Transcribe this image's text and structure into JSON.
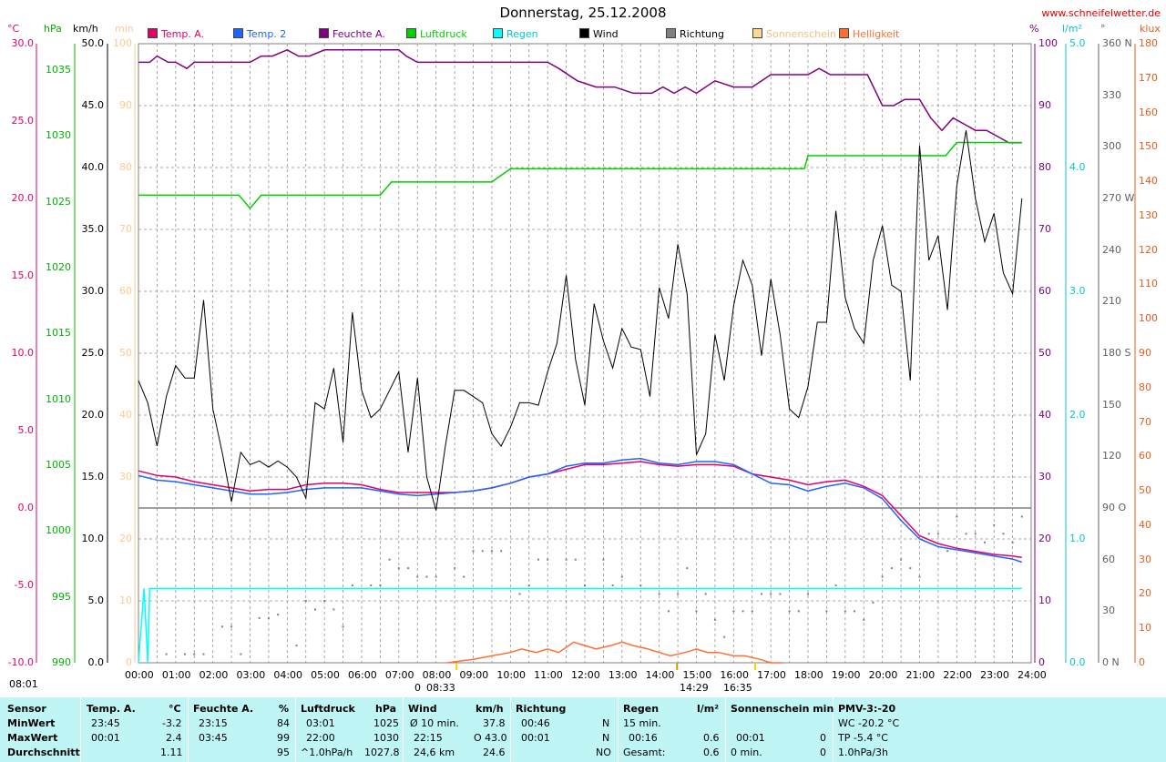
{
  "title": "Donnerstag, 25.12.2008",
  "site_url": "www.schneifelwetter.de",
  "legend": [
    {
      "label": "Temp. A.",
      "color": "#e0006a"
    },
    {
      "label": "Temp. 2",
      "color": "#1e64ff"
    },
    {
      "label": "Feuchte A.",
      "color": "#800080"
    },
    {
      "label": "Luftdruck",
      "color": "#00d000"
    },
    {
      "label": "Regen",
      "color": "#00ffff"
    },
    {
      "label": "Wind",
      "color": "#000000"
    },
    {
      "label": "Richtung",
      "color": "#808080"
    },
    {
      "label": "Sonnenschein",
      "color": "#ffd890"
    },
    {
      "label": "Helligkeit",
      "color": "#ff7030"
    }
  ],
  "units": {
    "temp": "°C",
    "pressure": "hPa",
    "wind": "km/h",
    "sun": "min",
    "humidity": "%",
    "rain": "l/m²",
    "direction": "°",
    "light": "klux"
  },
  "axis_colors": {
    "temp": "#e0006a",
    "pressure": "#00b000",
    "wind": "#000000",
    "sun": "#ffc890",
    "humidity": "#800080",
    "rain": "#00c8c8",
    "direction": "#606060",
    "light": "#e06020"
  },
  "chart_data": {
    "type": "line",
    "title": "Donnerstag, 25.12.2008",
    "x_ticks": [
      "00:00",
      "01:00",
      "02:00",
      "03:00",
      "04:00",
      "05:00",
      "06:00",
      "07:00",
      "08:00",
      "09:00",
      "10:00",
      "11:00",
      "12:00",
      "13:00",
      "14:00",
      "15:00",
      "16:00",
      "17:00",
      "18:00",
      "19:00",
      "20:00",
      "21:00",
      "22:00",
      "23:00",
      "24:00"
    ],
    "xlim": [
      0,
      24
    ],
    "axes": {
      "temp": {
        "unit": "°C",
        "range": [
          -10,
          30
        ],
        "ticks": [
          "30.0",
          "25.0",
          "20.0",
          "15.0",
          "10.0",
          "5.0",
          "0.0",
          "-5.0",
          "-10.0"
        ]
      },
      "pressure": {
        "unit": "hPa",
        "range": [
          990,
          1037
        ],
        "ticks": [
          "1035",
          "1030",
          "1025",
          "1020",
          "1015",
          "1010",
          "1005",
          "1000",
          "995",
          "990"
        ]
      },
      "wind": {
        "unit": "km/h",
        "range": [
          0,
          50
        ],
        "ticks": [
          "50.0",
          "45.0",
          "40.0",
          "35.0",
          "30.0",
          "25.0",
          "20.0",
          "15.0",
          "10.0",
          "5.0",
          "0.0"
        ]
      },
      "sun": {
        "unit": "min",
        "range": [
          0,
          100
        ],
        "ticks": [
          "100",
          "90",
          "80",
          "70",
          "60",
          "50",
          "40",
          "30",
          "20",
          "10",
          "0"
        ]
      },
      "humidity": {
        "unit": "%",
        "range": [
          0,
          100
        ],
        "ticks": [
          "100",
          "90",
          "80",
          "70",
          "60",
          "50",
          "40",
          "30",
          "20",
          "10",
          "0"
        ]
      },
      "rain": {
        "unit": "l/m²",
        "range": [
          0,
          5
        ],
        "ticks": [
          "5.0",
          "4.0",
          "3.0",
          "2.0",
          "1.0",
          "0.0"
        ]
      },
      "direction": {
        "unit": "°",
        "range": [
          0,
          360
        ],
        "ticks": [
          "360 N",
          "330",
          "300",
          "270 W",
          "240",
          "210",
          "180 S",
          "150",
          "120",
          "90 O",
          "60",
          "30",
          "0 N"
        ]
      },
      "light": {
        "unit": "klux",
        "range": [
          0,
          180
        ],
        "ticks": [
          "180",
          "170",
          "160",
          "150",
          "140",
          "130",
          "120",
          "110",
          "100",
          "90",
          "80",
          "70",
          "60",
          "50",
          "40",
          "30",
          "20",
          "10",
          "0"
        ]
      }
    },
    "series": [
      {
        "name": "Temp. A.",
        "axis": "temp",
        "color": "#e0006a",
        "x": [
          0,
          0.5,
          1,
          1.5,
          2,
          2.5,
          3,
          3.5,
          4,
          4.5,
          5,
          5.5,
          6,
          6.5,
          7,
          7.5,
          8,
          8.5,
          9,
          9.5,
          10,
          10.5,
          11,
          11.5,
          12,
          12.5,
          13,
          13.5,
          14,
          14.5,
          15,
          15.5,
          16,
          16.5,
          17,
          17.5,
          18,
          18.5,
          19,
          19.5,
          20,
          20.5,
          21,
          21.5,
          22,
          22.5,
          23,
          23.5,
          23.75
        ],
        "y": [
          2.4,
          2.1,
          2.0,
          1.7,
          1.5,
          1.3,
          1.1,
          1.2,
          1.2,
          1.5,
          1.6,
          1.6,
          1.5,
          1.2,
          1.0,
          1.0,
          1.0,
          1.0,
          1.1,
          1.3,
          1.6,
          2.0,
          2.2,
          2.5,
          2.8,
          2.8,
          2.9,
          3.0,
          2.8,
          2.7,
          2.8,
          2.8,
          2.7,
          2.2,
          2.0,
          1.8,
          1.5,
          1.7,
          1.8,
          1.4,
          0.8,
          -0.5,
          -1.8,
          -2.3,
          -2.6,
          -2.8,
          -3.0,
          -3.1,
          -3.2
        ]
      },
      {
        "name": "Temp. 2",
        "axis": "temp",
        "color": "#1e64ff",
        "x": [
          0,
          0.5,
          1,
          1.5,
          2,
          2.5,
          3,
          3.5,
          4,
          4.5,
          5,
          5.5,
          6,
          6.5,
          7,
          7.5,
          8,
          8.5,
          9,
          9.5,
          10,
          10.5,
          11,
          11.5,
          12,
          12.5,
          13,
          13.5,
          14,
          14.5,
          15,
          15.5,
          16,
          16.5,
          17,
          17.5,
          18,
          18.5,
          19,
          19.5,
          20,
          20.5,
          21,
          21.5,
          22,
          22.5,
          23,
          23.5,
          23.75
        ],
        "y": [
          2.1,
          1.8,
          1.7,
          1.5,
          1.3,
          1.1,
          0.9,
          0.9,
          1.0,
          1.2,
          1.3,
          1.3,
          1.3,
          1.1,
          0.9,
          0.8,
          0.9,
          1.0,
          1.1,
          1.3,
          1.6,
          2.0,
          2.2,
          2.7,
          2.9,
          2.9,
          3.1,
          3.2,
          2.9,
          2.8,
          3.0,
          3.0,
          2.8,
          2.2,
          1.6,
          1.5,
          1.1,
          1.4,
          1.6,
          1.3,
          0.6,
          -0.8,
          -2.0,
          -2.5,
          -2.7,
          -2.9,
          -3.1,
          -3.3,
          -3.5
        ]
      },
      {
        "name": "Feuchte A.",
        "axis": "humidity",
        "color": "#800080",
        "x": [
          0,
          0.3,
          0.5,
          0.8,
          1,
          1.3,
          1.5,
          2,
          2.5,
          3,
          3.3,
          3.6,
          4,
          4.3,
          4.6,
          5,
          5.5,
          6,
          6.5,
          7,
          7.2,
          7.5,
          8,
          8.5,
          9,
          9.5,
          10,
          10.5,
          11,
          11.3,
          11.8,
          12.3,
          12.8,
          13.3,
          13.8,
          14.1,
          14.4,
          14.7,
          15,
          15.5,
          16,
          16.5,
          17,
          17.5,
          18,
          18.3,
          18.6,
          19,
          19.3,
          19.6,
          20,
          20.3,
          20.6,
          21,
          21.3,
          21.6,
          21.9,
          22.2,
          22.5,
          22.8,
          23.1,
          23.4,
          23.75
        ],
        "y": [
          97,
          97,
          98,
          97,
          97,
          96,
          97,
          97,
          97,
          97,
          98,
          98,
          99,
          98,
          98,
          99,
          99,
          99,
          99,
          99,
          98,
          97,
          97,
          97,
          97,
          97,
          97,
          97,
          97,
          96,
          94,
          93,
          93,
          92,
          92,
          93,
          92,
          93,
          92,
          94,
          93,
          93,
          95,
          95,
          95,
          96,
          95,
          95,
          95,
          95,
          90,
          90,
          91,
          91,
          88,
          86,
          88,
          87,
          86,
          86,
          85,
          84,
          84
        ]
      },
      {
        "name": "Luftdruck",
        "axis": "pressure",
        "color": "#00d000",
        "x": [
          0,
          1,
          2,
          2.7,
          3,
          3.3,
          4,
          5,
          6,
          6.5,
          6.8,
          7,
          8,
          9,
          9.5,
          10,
          11,
          12,
          13,
          14,
          15,
          16,
          17,
          17.5,
          17.9,
          18,
          19,
          20,
          21,
          21.7,
          22,
          23,
          23.75
        ],
        "y": [
          1025.5,
          1025.5,
          1025.5,
          1025.5,
          1024.5,
          1025.5,
          1025.5,
          1025.5,
          1025.5,
          1025.5,
          1026.5,
          1026.5,
          1026.5,
          1026.5,
          1026.5,
          1027.5,
          1027.5,
          1027.5,
          1027.5,
          1027.5,
          1027.5,
          1027.5,
          1027.5,
          1027.5,
          1027.5,
          1028.5,
          1028.5,
          1028.5,
          1028.5,
          1028.5,
          1029.5,
          1029.5,
          1029.5
        ]
      },
      {
        "name": "Wind",
        "axis": "wind",
        "color": "#000000",
        "x": [
          0,
          0.25,
          0.5,
          0.75,
          1,
          1.25,
          1.5,
          1.75,
          2,
          2.25,
          2.5,
          2.75,
          3,
          3.25,
          3.5,
          3.75,
          4,
          4.25,
          4.5,
          4.75,
          5,
          5.25,
          5.5,
          5.75,
          6,
          6.25,
          6.5,
          6.75,
          7,
          7.25,
          7.5,
          7.75,
          8,
          8.25,
          8.5,
          8.75,
          9,
          9.25,
          9.5,
          9.75,
          10,
          10.25,
          10.5,
          10.75,
          11,
          11.25,
          11.5,
          11.75,
          12,
          12.25,
          12.5,
          12.75,
          13,
          13.25,
          13.5,
          13.75,
          14,
          14.25,
          14.5,
          14.75,
          15,
          15.25,
          15.5,
          15.75,
          16,
          16.25,
          16.5,
          16.75,
          17,
          17.25,
          17.5,
          17.75,
          18,
          18.25,
          18.5,
          18.75,
          19,
          19.25,
          19.5,
          19.75,
          20,
          20.25,
          20.5,
          20.75,
          21,
          21.25,
          21.5,
          21.75,
          22,
          22.25,
          22.5,
          22.75,
          23,
          23.25,
          23.5,
          23.75
        ],
        "y": [
          22.8,
          21.0,
          17.5,
          21.5,
          24.0,
          23.0,
          23.0,
          29.3,
          20.5,
          17.0,
          13.0,
          17.0,
          16.0,
          16.3,
          15.8,
          16.3,
          15.8,
          15.0,
          13.3,
          21.0,
          20.5,
          23.8,
          17.8,
          28.3,
          22.0,
          19.8,
          20.5,
          22.0,
          23.5,
          17.0,
          23.0,
          15.0,
          12.3,
          17.5,
          22.0,
          22.0,
          21.5,
          21.0,
          18.5,
          17.5,
          19.0,
          21.0,
          21.0,
          20.8,
          23.5,
          25.8,
          31.3,
          24.5,
          20.8,
          29.0,
          26.0,
          23.8,
          27.0,
          25.5,
          25.3,
          21.5,
          30.3,
          27.8,
          33.8,
          29.8,
          16.8,
          18.5,
          26.5,
          22.8,
          28.8,
          32.5,
          30.5,
          24.8,
          31.0,
          26.5,
          20.5,
          19.8,
          22.3,
          27.5,
          27.5,
          36.5,
          29.5,
          27.0,
          25.8,
          32.5,
          35.3,
          30.5,
          30.0,
          22.8,
          41.8,
          32.5,
          34.5,
          28.5,
          38.5,
          43.0,
          37.5,
          34.0,
          36.3,
          31.5,
          29.8,
          37.5
        ]
      },
      {
        "name": "Regen",
        "axis": "rain",
        "color": "#00ffff",
        "x": [
          0,
          0.15,
          0.25,
          0.3,
          1,
          6,
          12,
          18,
          23.75
        ],
        "y": [
          0,
          0.6,
          0,
          0.6,
          0.6,
          0.6,
          0.6,
          0.6,
          0.6
        ]
      },
      {
        "name": "Helligkeit",
        "axis": "light",
        "color": "#ff7030",
        "x": [
          8.3,
          9,
          9.5,
          10,
          10.3,
          10.7,
          11,
          11.3,
          11.7,
          12,
          12.3,
          12.7,
          13,
          13.3,
          13.7,
          14,
          14.3,
          14.7,
          15,
          15.3,
          15.6,
          16,
          16.3,
          16.7,
          17,
          17.3
        ],
        "y": [
          0,
          1,
          2,
          3,
          4,
          3,
          4,
          3,
          6,
          5,
          4,
          5,
          6,
          5,
          4,
          3,
          2,
          3,
          4,
          3,
          3,
          2,
          2,
          1,
          0,
          0
        ]
      },
      {
        "name": "Richtung",
        "axis": "direction",
        "color": "#808080",
        "x": [
          0.75,
          1.25,
          1.5,
          1.75,
          2.25,
          2.5,
          2.75,
          3.25,
          3.5,
          3.75,
          4.25,
          4.5,
          4.75,
          5,
          5.25,
          5.5,
          5.75,
          6.25,
          6.5,
          6.75,
          7,
          7.25,
          7.5,
          7.75,
          8,
          8.5,
          8.75,
          9,
          9.25,
          9.5,
          9.75,
          10.25,
          10.5,
          10.75,
          11,
          11.5,
          11.75,
          12,
          12.5,
          12.75,
          13,
          13.5,
          14,
          14.25,
          14.5,
          14.75,
          15,
          15.25,
          15.5,
          15.75,
          16,
          16.25,
          16.5,
          16.75,
          17,
          17.25,
          17.5,
          17.75,
          18,
          18.5,
          18.75,
          19,
          19.25,
          19.5,
          19.75,
          20,
          20.25,
          20.5,
          20.75,
          21,
          21.25,
          21.5,
          21.75,
          22,
          22.25,
          22.5,
          22.75,
          23,
          23.25,
          23.5,
          23.75
        ],
        "y": [
          5,
          5,
          5,
          5,
          21,
          21,
          5,
          26,
          26,
          28,
          10,
          36,
          31,
          36,
          31,
          21,
          45,
          45,
          45,
          60,
          55,
          55,
          50,
          50,
          50,
          55,
          50,
          65,
          65,
          65,
          65,
          40,
          45,
          60,
          60,
          60,
          60,
          45,
          60,
          45,
          50,
          45,
          40,
          30,
          40,
          55,
          30,
          40,
          25,
          15,
          30,
          30,
          30,
          40,
          40,
          40,
          30,
          30,
          40,
          30,
          45,
          30,
          30,
          25,
          35,
          50,
          55,
          60,
          55,
          50,
          75,
          75,
          65,
          85,
          75,
          75,
          70,
          80,
          75,
          70,
          85
        ]
      }
    ]
  },
  "sunrise": {
    "label": "08:33",
    "x": 8.55
  },
  "sunset": {
    "label": "16:35",
    "x": 16.58
  },
  "sun_noon": {
    "label": "14:29",
    "x": 14.48
  },
  "marker_start": {
    "label": "08:01"
  },
  "marker_zero": {
    "label": "0"
  },
  "stats": {
    "row_labels": [
      "Sensor",
      "MinWert",
      "MaxWert",
      "Durchschnitt"
    ],
    "temp": {
      "head": "Temp. A.",
      "unit": "°C",
      "min_time": "23:45",
      "min": "-3.2",
      "max_time": "00:01",
      "max": "2.4",
      "avg": "1.11"
    },
    "hum": {
      "head": "Feuchte A.",
      "unit": "%",
      "min_time": "23:15",
      "min": "84",
      "max_time": "03:45",
      "max": "99",
      "avg": "95"
    },
    "press": {
      "head": "Luftdruck",
      "unit": "hPa",
      "min_time": "03:01",
      "min": "1025",
      "max_time": "22:00",
      "max": "1030",
      "avg_label": "^1.0hPa/h",
      "avg": "1027.8"
    },
    "wind": {
      "head": "Wind",
      "unit": "km/h",
      "row1_label": "Ø 10 min.",
      "row1": "37.8",
      "row2_label": "22:15",
      "row2": "O 43.0",
      "row3_label": "24,6 km",
      "row3": "24.6"
    },
    "dir": {
      "head": "Richtung",
      "row1_time": "00:46",
      "row1": "N",
      "row2_time": "00:01",
      "row2": "N",
      "avg": "NO"
    },
    "rain": {
      "head": "Regen",
      "unit": "l/m²",
      "row1_label": "15 min.",
      "row1": "",
      "row2_time": "00:16",
      "row2": "0.6",
      "row3_label": "Gesamt:",
      "row3": "0.6"
    },
    "sun": {
      "head": "Sonnenschein min",
      "row2_time": "00:01",
      "row2": "0",
      "row3_label": "0 min.",
      "row3": "0"
    },
    "pmv": {
      "head": "PMV-3:-20",
      "row1": "WC -20.2 °C",
      "row2": "TP -5.4 °C",
      "row3": "1.0hPa/3h"
    }
  }
}
